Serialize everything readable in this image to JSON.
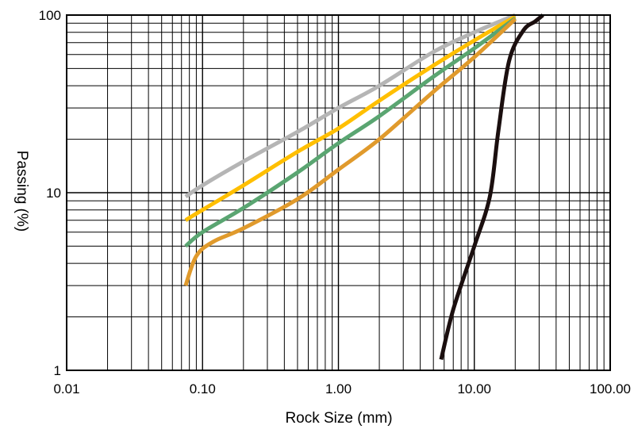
{
  "chart_data": {
    "type": "line",
    "xlabel": "Rock Size (mm)",
    "ylabel": "Passing (%)",
    "x_scale": "log",
    "y_scale": "log",
    "xlim": [
      0.01,
      100
    ],
    "ylim": [
      1,
      100
    ],
    "x_tick_values": [
      0.01,
      0.1,
      1,
      10,
      100
    ],
    "x_tick_labels": [
      "0.01",
      "0.10",
      "1.00",
      "10.00",
      "100.00"
    ],
    "y_tick_values": [
      1,
      10,
      100
    ],
    "y_tick_labels": [
      "1",
      "10",
      "100"
    ],
    "grid": true,
    "legend": "none",
    "series": [
      {
        "color": "#b5b5b5",
        "points": [
          [
            0.075,
            9.5
          ],
          [
            0.1,
            11.0
          ],
          [
            0.2,
            15.0
          ],
          [
            0.5,
            22.0
          ],
          [
            1.0,
            30.0
          ],
          [
            2.0,
            40.0
          ],
          [
            5.0,
            62.0
          ],
          [
            10.0,
            80.0
          ],
          [
            20.0,
            100.0
          ]
        ]
      },
      {
        "color": "#ffbf00",
        "points": [
          [
            0.075,
            7.0
          ],
          [
            0.1,
            8.0
          ],
          [
            0.2,
            11.0
          ],
          [
            0.5,
            17.0
          ],
          [
            1.0,
            23.0
          ],
          [
            2.0,
            33.0
          ],
          [
            5.0,
            52.0
          ],
          [
            10.0,
            72.0
          ],
          [
            20.0,
            98.0
          ]
        ]
      },
      {
        "color": "#5aa571",
        "points": [
          [
            0.075,
            5.0
          ],
          [
            0.1,
            6.0
          ],
          [
            0.2,
            8.2
          ],
          [
            0.5,
            13.0
          ],
          [
            1.0,
            19.0
          ],
          [
            2.0,
            27.0
          ],
          [
            5.0,
            45.0
          ],
          [
            10.0,
            65.0
          ],
          [
            20.0,
            96.0
          ]
        ]
      },
      {
        "color": "#e09a2c",
        "points": [
          [
            0.075,
            3.0
          ],
          [
            0.09,
            4.4
          ],
          [
            0.12,
            5.3
          ],
          [
            0.2,
            6.3
          ],
          [
            0.5,
            9.2
          ],
          [
            1.0,
            13.5
          ],
          [
            2.0,
            20.0
          ],
          [
            5.0,
            37.0
          ],
          [
            10.0,
            58.0
          ],
          [
            20.0,
            95.0
          ]
        ]
      },
      {
        "color": "#1b0f0f",
        "points": [
          [
            5.7,
            1.15
          ],
          [
            7.0,
            2.2
          ],
          [
            10.0,
            5.0
          ],
          [
            13.0,
            9.5
          ],
          [
            15.0,
            22.0
          ],
          [
            18.0,
            55.0
          ],
          [
            23.0,
            82.0
          ],
          [
            28.0,
            92.0
          ],
          [
            32.0,
            100.0
          ]
        ]
      }
    ]
  }
}
